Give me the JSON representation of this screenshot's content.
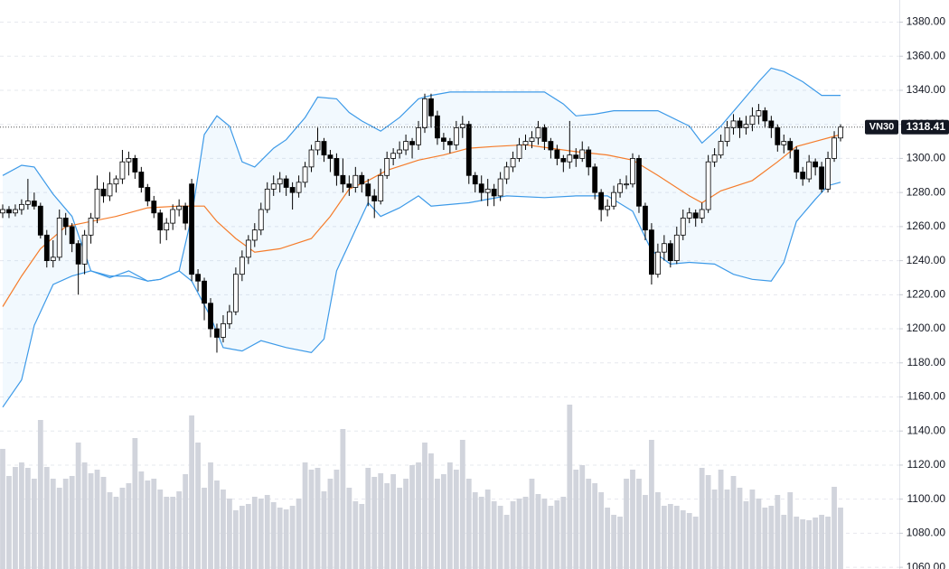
{
  "chart_data": {
    "type": "candlestick",
    "symbol": "VN30",
    "ylim": [
      1059,
      1393
    ],
    "yticks": [
      {
        "value": 1060,
        "label": "1060.00"
      },
      {
        "value": 1080,
        "label": "1080.00"
      },
      {
        "value": 1100,
        "label": "1100.00"
      },
      {
        "value": 1120,
        "label": "1120.00"
      },
      {
        "value": 1140,
        "label": "1140.00"
      },
      {
        "value": 1160,
        "label": "1160.00"
      },
      {
        "value": 1180,
        "label": "1180.00"
      },
      {
        "value": 1200,
        "label": "1200.00"
      },
      {
        "value": 1220,
        "label": "1220.00"
      },
      {
        "value": 1240,
        "label": "1240.00"
      },
      {
        "value": 1260,
        "label": "1260.00"
      },
      {
        "value": 1280,
        "label": "1280.00"
      },
      {
        "value": 1300,
        "label": "1300.00"
      },
      {
        "value": 1320,
        "label": "1320.00"
      },
      {
        "value": 1340,
        "label": "1340.00"
      },
      {
        "value": 1360,
        "label": "1360.00"
      },
      {
        "value": 1380,
        "label": "1380.00"
      }
    ],
    "grid": true,
    "up_color": "#ffffff",
    "down_color": "#000000",
    "candles": [
      [
        1268,
        1273,
        1265,
        1270
      ],
      [
        1270,
        1272,
        1265,
        1268
      ],
      [
        1268,
        1273,
        1266,
        1270
      ],
      [
        1270,
        1276,
        1267,
        1273
      ],
      [
        1273,
        1288,
        1270,
        1275
      ],
      [
        1275,
        1280,
        1270,
        1272
      ],
      [
        1272,
        1274,
        1253,
        1255
      ],
      [
        1255,
        1258,
        1236,
        1240
      ],
      [
        1240,
        1252,
        1236,
        1242
      ],
      [
        1242,
        1270,
        1240,
        1265
      ],
      [
        1265,
        1268,
        1255,
        1260
      ],
      [
        1260,
        1262,
        1245,
        1250
      ],
      [
        1250,
        1252,
        1220,
        1238
      ],
      [
        1238,
        1258,
        1232,
        1255
      ],
      [
        1255,
        1268,
        1250,
        1265
      ],
      [
        1265,
        1290,
        1262,
        1282
      ],
      [
        1282,
        1286,
        1274,
        1278
      ],
      [
        1278,
        1292,
        1275,
        1285
      ],
      [
        1285,
        1290,
        1280,
        1288
      ],
      [
        1288,
        1305,
        1285,
        1298
      ],
      [
        1298,
        1304,
        1290,
        1300
      ],
      [
        1300,
        1302,
        1288,
        1292
      ],
      [
        1292,
        1295,
        1280,
        1283
      ],
      [
        1283,
        1285,
        1272,
        1275
      ],
      [
        1275,
        1278,
        1265,
        1268
      ],
      [
        1268,
        1270,
        1250,
        1258
      ],
      [
        1258,
        1265,
        1252,
        1262
      ],
      [
        1262,
        1273,
        1258,
        1270
      ],
      [
        1270,
        1276,
        1266,
        1272
      ],
      [
        1272,
        1274,
        1258,
        1262
      ],
      [
        1285,
        1288,
        1228,
        1232
      ],
      [
        1232,
        1235,
        1222,
        1228
      ],
      [
        1228,
        1230,
        1205,
        1215
      ],
      [
        1215,
        1218,
        1195,
        1200
      ],
      [
        1200,
        1203,
        1186,
        1195
      ],
      [
        1195,
        1208,
        1192,
        1203
      ],
      [
        1203,
        1214,
        1200,
        1210
      ],
      [
        1210,
        1236,
        1208,
        1232
      ],
      [
        1232,
        1246,
        1228,
        1242
      ],
      [
        1242,
        1255,
        1238,
        1252
      ],
      [
        1252,
        1262,
        1248,
        1258
      ],
      [
        1258,
        1274,
        1255,
        1270
      ],
      [
        1270,
        1286,
        1268,
        1282
      ],
      [
        1282,
        1290,
        1278,
        1285
      ],
      [
        1285,
        1292,
        1280,
        1288
      ],
      [
        1288,
        1290,
        1278,
        1283
      ],
      [
        1283,
        1286,
        1270,
        1280
      ],
      [
        1280,
        1290,
        1277,
        1286
      ],
      [
        1286,
        1298,
        1283,
        1295
      ],
      [
        1295,
        1308,
        1292,
        1305
      ],
      [
        1305,
        1318,
        1302,
        1310
      ],
      [
        1310,
        1312,
        1298,
        1302
      ],
      [
        1302,
        1305,
        1292,
        1300
      ],
      [
        1300,
        1303,
        1284,
        1290
      ],
      [
        1290,
        1300,
        1280,
        1285
      ],
      [
        1285,
        1290,
        1278,
        1283
      ],
      [
        1283,
        1295,
        1280,
        1290
      ],
      [
        1290,
        1292,
        1280,
        1285
      ],
      [
        1285,
        1288,
        1272,
        1278
      ],
      [
        1278,
        1282,
        1265,
        1275
      ],
      [
        1275,
        1294,
        1273,
        1290
      ],
      [
        1290,
        1304,
        1288,
        1300
      ],
      [
        1300,
        1306,
        1296,
        1303
      ],
      [
        1303,
        1310,
        1300,
        1305
      ],
      [
        1305,
        1314,
        1302,
        1310
      ],
      [
        1310,
        1312,
        1300,
        1308
      ],
      [
        1308,
        1322,
        1305,
        1318
      ],
      [
        1318,
        1338,
        1315,
        1335
      ],
      [
        1335,
        1338,
        1318,
        1325
      ],
      [
        1325,
        1328,
        1308,
        1312
      ],
      [
        1312,
        1315,
        1305,
        1310
      ],
      [
        1310,
        1312,
        1303,
        1308
      ],
      [
        1308,
        1322,
        1305,
        1318
      ],
      [
        1318,
        1325,
        1312,
        1320
      ],
      [
        1320,
        1322,
        1285,
        1290
      ],
      [
        1290,
        1292,
        1280,
        1285
      ],
      [
        1285,
        1290,
        1275,
        1280
      ],
      [
        1280,
        1288,
        1272,
        1282
      ],
      [
        1282,
        1285,
        1272,
        1278
      ],
      [
        1278,
        1292,
        1275,
        1288
      ],
      [
        1288,
        1298,
        1285,
        1295
      ],
      [
        1295,
        1304,
        1292,
        1300
      ],
      [
        1300,
        1312,
        1298,
        1308
      ],
      [
        1308,
        1314,
        1305,
        1310
      ],
      [
        1310,
        1316,
        1306,
        1312
      ],
      [
        1312,
        1322,
        1308,
        1318
      ],
      [
        1318,
        1320,
        1305,
        1310
      ],
      [
        1310,
        1312,
        1300,
        1305
      ],
      [
        1305,
        1308,
        1296,
        1300
      ],
      [
        1300,
        1302,
        1292,
        1298
      ],
      [
        1298,
        1322,
        1294,
        1302
      ],
      [
        1302,
        1306,
        1295,
        1300
      ],
      [
        1300,
        1310,
        1298,
        1305
      ],
      [
        1305,
        1307,
        1290,
        1295
      ],
      [
        1295,
        1297,
        1276,
        1280
      ],
      [
        1280,
        1282,
        1263,
        1270
      ],
      [
        1270,
        1276,
        1266,
        1272
      ],
      [
        1272,
        1284,
        1270,
        1280
      ],
      [
        1280,
        1288,
        1277,
        1285
      ],
      [
        1285,
        1290,
        1282,
        1285
      ],
      [
        1285,
        1303,
        1283,
        1300
      ],
      [
        1300,
        1302,
        1268,
        1272
      ],
      [
        1272,
        1274,
        1252,
        1258
      ],
      [
        1258,
        1262,
        1226,
        1232
      ],
      [
        1232,
        1250,
        1230,
        1245
      ],
      [
        1245,
        1255,
        1240,
        1250
      ],
      [
        1250,
        1252,
        1236,
        1240
      ],
      [
        1240,
        1260,
        1238,
        1255
      ],
      [
        1255,
        1270,
        1252,
        1265
      ],
      [
        1265,
        1271,
        1262,
        1268
      ],
      [
        1268,
        1270,
        1260,
        1265
      ],
      [
        1265,
        1274,
        1262,
        1270
      ],
      [
        1270,
        1302,
        1268,
        1298
      ],
      [
        1298,
        1306,
        1295,
        1302
      ],
      [
        1302,
        1314,
        1300,
        1310
      ],
      [
        1310,
        1322,
        1307,
        1318
      ],
      [
        1318,
        1326,
        1314,
        1322
      ],
      [
        1322,
        1324,
        1312,
        1318
      ],
      [
        1318,
        1325,
        1314,
        1320
      ],
      [
        1320,
        1330,
        1316,
        1325
      ],
      [
        1325,
        1332,
        1320,
        1328
      ],
      [
        1328,
        1330,
        1318,
        1322
      ],
      [
        1322,
        1325,
        1312,
        1318
      ],
      [
        1318,
        1320,
        1304,
        1308
      ],
      [
        1308,
        1314,
        1303,
        1310
      ],
      [
        1310,
        1312,
        1300,
        1305
      ],
      [
        1305,
        1307,
        1288,
        1292
      ],
      [
        1292,
        1295,
        1284,
        1288
      ],
      [
        1288,
        1302,
        1286,
        1298
      ],
      [
        1298,
        1300,
        1290,
        1295
      ],
      [
        1295,
        1298,
        1280,
        1282
      ],
      [
        1282,
        1304,
        1280,
        1300
      ],
      [
        1300,
        1316,
        1298,
        1312
      ],
      [
        1312,
        1320,
        1310,
        1318.41
      ]
    ],
    "y2lim": [
      0,
      630
    ],
    "volume_color": "#d1d4dc",
    "volume": [
      133,
      103,
      113,
      118,
      112,
      100,
      165,
      113,
      100,
      90,
      100,
      103,
      140,
      118,
      106,
      110,
      102,
      85,
      80,
      90,
      95,
      145,
      108,
      98,
      100,
      88,
      80,
      80,
      86,
      105,
      170,
      140,
      90,
      118,
      98,
      88,
      78,
      65,
      70,
      72,
      80,
      78,
      82,
      74,
      68,
      66,
      70,
      78,
      118,
      110,
      112,
      86,
      100,
      110,
      155,
      90,
      75,
      72,
      112,
      102,
      106,
      95,
      105,
      90,
      100,
      115,
      118,
      140,
      128,
      100,
      105,
      118,
      110,
      143,
      100,
      85,
      80,
      88,
      75,
      70,
      60,
      75,
      78,
      80,
      100,
      83,
      78,
      70,
      76,
      80,
      182,
      110,
      115,
      100,
      95,
      85,
      68,
      60,
      58,
      100,
      110,
      100,
      82,
      143,
      85,
      70,
      72,
      70,
      65,
      62,
      58,
      112,
      104,
      88,
      110,
      88,
      103,
      90,
      75,
      88,
      78,
      68,
      70,
      82,
      60,
      85,
      58,
      55,
      54,
      57,
      60,
      58,
      91,
      68
    ],
    "bands": [
      {
        "color": "#3d9ae8",
        "x": [
          0,
          3,
          5,
          8,
          11,
          14,
          17,
          20,
          23,
          25,
          28,
          30,
          32,
          34,
          36,
          38,
          40,
          43,
          45,
          48,
          50,
          53,
          55,
          57,
          60,
          63,
          66,
          68,
          71,
          76,
          80,
          86,
          89,
          91,
          94,
          97,
          100,
          104,
          109,
          111,
          114,
          117,
          120,
          122,
          124,
          127,
          130,
          133
        ],
        "values": [
          1290,
          1296,
          1295,
          1279,
          1266,
          1234,
          1231,
          1231,
          1228,
          1229,
          1234,
          1266,
          1314,
          1325,
          1319,
          1298,
          1295,
          1306,
          1311,
          1324,
          1336,
          1335,
          1327,
          1322,
          1316,
          1324,
          1335,
          1337,
          1339,
          1339,
          1339,
          1339,
          1332,
          1325,
          1326,
          1328,
          1328,
          1328,
          1319,
          1309,
          1319,
          1332,
          1345,
          1353,
          1351,
          1345,
          1337,
          1337
        ]
      },
      {
        "color": "#f57c2b",
        "x": [
          0,
          3,
          6,
          10,
          14,
          18,
          23,
          28,
          32,
          34,
          37,
          40,
          44,
          49,
          52,
          55,
          58,
          61,
          66,
          70,
          74,
          78,
          83,
          87,
          91,
          96,
          100,
          104,
          109,
          111,
          114,
          119,
          123,
          126,
          129,
          133
        ],
        "values": [
          1213,
          1231,
          1247,
          1260,
          1263,
          1266,
          1271,
          1272,
          1272,
          1263,
          1253,
          1245,
          1247,
          1253,
          1266,
          1282,
          1287,
          1293,
          1299,
          1302,
          1306,
          1307,
          1308,
          1306,
          1304,
          1302,
          1299,
          1290,
          1278,
          1274,
          1281,
          1287,
          1298,
          1307,
          1310,
          1314
        ]
      },
      {
        "color": "#3d9ae8",
        "x": [
          0,
          3,
          5,
          8,
          11,
          14,
          17,
          20,
          23,
          25,
          28,
          30,
          33,
          35,
          38,
          41,
          45,
          49,
          51,
          53,
          56,
          58,
          60,
          63,
          66,
          68,
          74,
          80,
          86,
          91,
          96,
          100,
          103,
          106,
          109,
          113,
          116,
          119,
          122,
          124,
          126,
          129,
          131,
          133
        ],
        "values": [
          1154,
          1170,
          1202,
          1226,
          1231,
          1234,
          1230,
          1234,
          1228,
          1229,
          1234,
          1228,
          1207,
          1189,
          1187,
          1193,
          1189,
          1186,
          1194,
          1234,
          1258,
          1274,
          1266,
          1271,
          1278,
          1272,
          1274,
          1278,
          1277,
          1278,
          1278,
          1269,
          1246,
          1238,
          1239,
          1238,
          1232,
          1229,
          1228,
          1239,
          1263,
          1276,
          1284,
          1286
        ]
      }
    ],
    "band_fill": "#2196f3"
  }
}
